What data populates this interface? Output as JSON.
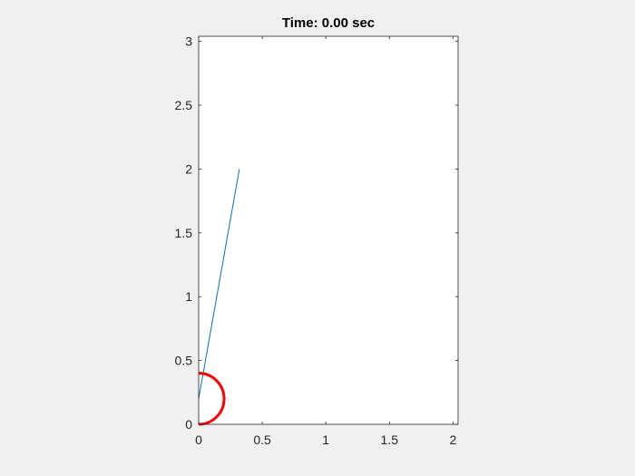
{
  "window": {
    "background": "#f0f0f0"
  },
  "axes": {
    "title": "Time: 0.00 sec",
    "background": "#ffffff",
    "box_color": "#262626",
    "xticks": [
      0,
      0.5,
      1,
      1.5,
      2
    ],
    "xtick_labels": [
      "0",
      "0.5",
      "1",
      "1.5",
      "2"
    ],
    "yticks": [
      0,
      0.5,
      1,
      1.5,
      2,
      2.5,
      3
    ],
    "ytick_labels": [
      "0",
      "0.5",
      "1",
      "1.5",
      "2",
      "2.5",
      "3"
    ]
  },
  "chart_data": {
    "type": "line",
    "title": "Time: 0.00 sec",
    "xlabel": "",
    "ylabel": "",
    "xlim": [
      0,
      2.04
    ],
    "ylim": [
      0,
      3.04
    ],
    "grid": false,
    "series": [
      {
        "kind": "line",
        "color": "#0072bd",
        "x": [
          0.0,
          0.32
        ],
        "y": [
          0.2,
          2.0
        ]
      },
      {
        "kind": "circle-arc",
        "color": "#ff0000",
        "center": [
          0.0,
          0.2
        ],
        "radius": 0.2,
        "visible_half": "right"
      }
    ]
  }
}
